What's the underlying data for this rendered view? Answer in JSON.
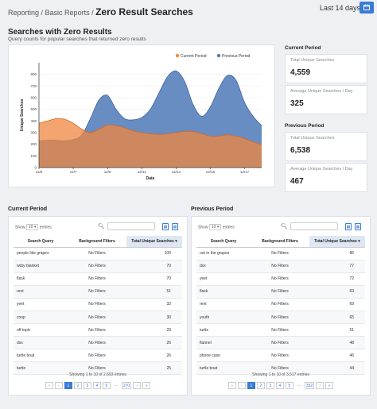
{
  "header": {
    "breadcrumb_reporting": "Reporting",
    "breadcrumb_sep1": " / ",
    "breadcrumb_basic": "Basic Reports",
    "breadcrumb_sep2": " / ",
    "page_title": "Zero Result Searches",
    "date_range": "Last 14 days",
    "calendar_icon": "calendar-icon"
  },
  "chart_section": {
    "title": "Searches with Zero Results",
    "subtitle": "Query counts for popular searches that returned zero results"
  },
  "chart_data": {
    "type": "area",
    "title": "",
    "xlabel": "Date",
    "ylabel": "Unique Searches",
    "ylim": [
      0,
      900
    ],
    "yticks": [
      "0",
      "100",
      "200",
      "300",
      "400",
      "500",
      "600",
      "700",
      "800"
    ],
    "xticks": [
      "12/5",
      "12/7",
      "12/9",
      "12/11",
      "12/13",
      "12/15",
      "12/17"
    ],
    "legend_position": "top-right",
    "grid": true,
    "series": [
      {
        "name": "Current Period",
        "color": "#f0873f",
        "points": [
          [
            "12/5",
            380
          ],
          [
            "12/5.5",
            400
          ],
          [
            "12/6",
            420
          ],
          [
            "12/6.5",
            415
          ],
          [
            "12/7",
            380
          ],
          [
            "12/7.5",
            330
          ],
          [
            "12/8",
            300
          ],
          [
            "12/8.5",
            330
          ],
          [
            "12/9",
            365
          ],
          [
            "12/9.5",
            360
          ],
          [
            "12/10",
            340
          ],
          [
            "12/10.5",
            315
          ],
          [
            "12/11",
            300
          ],
          [
            "12/11.5",
            290
          ],
          [
            "12/12",
            285
          ],
          [
            "12/12.5",
            290
          ],
          [
            "12/13",
            300
          ],
          [
            "12/13.5",
            310
          ],
          [
            "12/14",
            310
          ],
          [
            "12/14.5",
            290
          ],
          [
            "12/15",
            270
          ],
          [
            "12/15.5",
            270
          ],
          [
            "12/16",
            280
          ],
          [
            "12/16.5",
            270
          ],
          [
            "12/17",
            250
          ],
          [
            "12/17.5",
            220
          ],
          [
            "12/18",
            200
          ]
        ]
      },
      {
        "name": "Previous Period",
        "color": "#4e79b9",
        "points": [
          [
            "12/5",
            230
          ],
          [
            "12/5.5",
            235
          ],
          [
            "12/6",
            235
          ],
          [
            "12/6.5",
            230
          ],
          [
            "12/7",
            240
          ],
          [
            "12/7.5",
            280
          ],
          [
            "12/8",
            420
          ],
          [
            "12/8.5",
            580
          ],
          [
            "12/9",
            620
          ],
          [
            "12/9.5",
            500
          ],
          [
            "12/10",
            420
          ],
          [
            "12/10.5",
            410
          ],
          [
            "12/11",
            430
          ],
          [
            "12/11.5",
            500
          ],
          [
            "12/12",
            640
          ],
          [
            "12/12.5",
            780
          ],
          [
            "12/13",
            830
          ],
          [
            "12/13.5",
            740
          ],
          [
            "12/14",
            540
          ],
          [
            "12/14.5",
            440
          ],
          [
            "12/15",
            520
          ],
          [
            "12/15.5",
            680
          ],
          [
            "12/16",
            790
          ],
          [
            "12/16.5",
            750
          ],
          [
            "12/17",
            560
          ],
          [
            "12/17.5",
            440
          ],
          [
            "12/18",
            360
          ]
        ]
      }
    ]
  },
  "current_period": {
    "heading": "Current Period",
    "total_label": "Total Unique Searches",
    "total_value": "4,559",
    "avg_label": "Average Unique Searches / Day",
    "avg_value": "325"
  },
  "previous_period": {
    "heading": "Previous Period",
    "total_label": "Total Unique Searches",
    "total_value": "6,538",
    "avg_label": "Average Unique Searches / Day",
    "avg_value": "467"
  },
  "tables": [
    {
      "title": "Current Period",
      "show_label": "Show",
      "entries_value": "10",
      "entries_label": "entries",
      "search_icon": "search-icon",
      "columns": [
        "Search Query",
        "Background Filters",
        "Total Unique Searches"
      ],
      "rows": [
        [
          "people like grapes",
          "No Filters",
          "100"
        ],
        [
          "rwby blanket",
          "No Filters",
          "70"
        ],
        [
          "flask",
          "No Filters",
          "70"
        ],
        [
          "rent",
          "No Filters",
          "51"
        ],
        [
          "yeet",
          "No Filters",
          "32"
        ],
        [
          "coop",
          "No Filters",
          "30"
        ],
        [
          "off topic",
          "No Filters",
          "29"
        ],
        [
          "dsx",
          "No Filters",
          "26"
        ],
        [
          "turtle boat",
          "No Filters",
          "26"
        ],
        [
          "turtle",
          "No Filters",
          "25"
        ]
      ],
      "info": "Showing 1 to 10 of 2,693 entries",
      "pages": [
        "«",
        "‹",
        "1",
        "2",
        "3",
        "4",
        "5",
        "...",
        "270",
        "›",
        "»"
      ],
      "active_page": "1"
    },
    {
      "title": "Previous Period",
      "show_label": "Show",
      "entries_value": "10",
      "entries_label": "entries",
      "search_icon": "search-icon",
      "columns": [
        "Search Query",
        "Background Filters",
        "Total Unique Searches"
      ],
      "rows": [
        [
          "out in the grapes",
          "No Filters",
          "86"
        ],
        [
          "dsx",
          "No Filters",
          "77"
        ],
        [
          "yeet",
          "No Filters",
          "72"
        ],
        [
          "flask",
          "No Filters",
          "69"
        ],
        [
          "rent",
          "No Filters",
          "69"
        ],
        [
          "youth",
          "No Filters",
          "65"
        ],
        [
          "turtle",
          "No Filters",
          "51"
        ],
        [
          "flannel",
          "No Filters",
          "48"
        ],
        [
          "phone case",
          "No Filters",
          "46"
        ],
        [
          "turtle boat",
          "No Filters",
          "44"
        ]
      ],
      "info": "Showing 1 to 10 of 3,517 entries",
      "pages": [
        "«",
        "‹",
        "1",
        "2",
        "3",
        "4",
        "5",
        "...",
        "352",
        "›",
        "»"
      ],
      "active_page": "1"
    }
  ]
}
